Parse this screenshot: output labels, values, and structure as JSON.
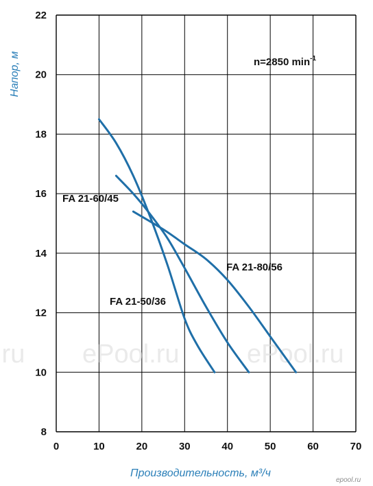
{
  "chart_data": {
    "type": "line",
    "xlabel": "Производительность, м³/ч",
    "ylabel": "Напор, м",
    "xlim": [
      0,
      70
    ],
    "ylim": [
      8,
      22
    ],
    "x_ticks": [
      "0",
      "10",
      "20",
      "30",
      "40",
      "50",
      "60",
      "70"
    ],
    "y_ticks": [
      "8",
      "10",
      "12",
      "14",
      "16",
      "18",
      "20",
      "22"
    ],
    "grid": true,
    "annotation": "n=2850 min",
    "annotation_sup": "-1",
    "line_color": "#1f6fa8",
    "series": [
      {
        "name": "FA 21-60/45",
        "x": [
          10,
          14,
          18,
          22,
          26,
          30,
          33,
          37
        ],
        "y": [
          18.5,
          17.7,
          16.6,
          15.2,
          13.6,
          11.8,
          10.9,
          10.0
        ]
      },
      {
        "name": "FA 21-50/36",
        "x": [
          14,
          18,
          22,
          26,
          30,
          35,
          40,
          45
        ],
        "y": [
          16.6,
          16.0,
          15.3,
          14.5,
          13.5,
          12.2,
          11.0,
          10.0
        ]
      },
      {
        "name": "FA 21-80/56",
        "x": [
          18,
          25,
          30,
          35,
          40,
          45,
          50,
          56
        ],
        "y": [
          15.4,
          14.8,
          14.3,
          13.8,
          13.1,
          12.2,
          11.2,
          10.0
        ]
      }
    ]
  },
  "labels": {
    "s1": "FA 21-60/45",
    "s2": "FA 21-50/36",
    "s3": "FA 21-80/56"
  },
  "watermarks": {
    "a": ".ru",
    "b": "ePool.ru",
    "c": "ePool.ru",
    "d": "epool.ru"
  }
}
